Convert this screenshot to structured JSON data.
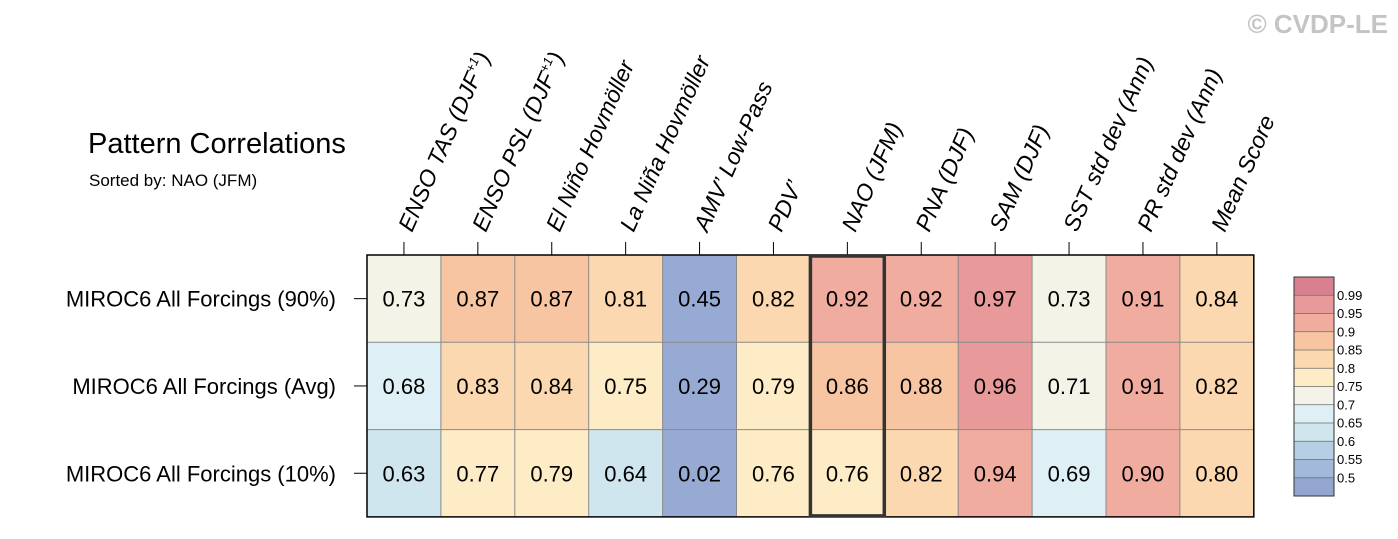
{
  "watermark": "© CVDP-LE",
  "chart_data": {
    "type": "heatmap",
    "title": "Pattern Correlations",
    "subtitle": "Sorted by: NAO (JFM)",
    "columns": [
      {
        "base": "ENSO TAS (DJF",
        "sup": "+1",
        "close": ")"
      },
      {
        "base": "ENSO PSL (DJF",
        "sup": "+1",
        "close": ")"
      },
      {
        "base": "El Niño Hovmöller",
        "sup": "",
        "close": ""
      },
      {
        "base": "La Niña Hovmöller",
        "sup": "",
        "close": ""
      },
      {
        "base": "AMV’ Low-Pass",
        "sup": "",
        "close": ""
      },
      {
        "base": "PDV’",
        "sup": "",
        "close": ""
      },
      {
        "base": "NAO (JFM)",
        "sup": "",
        "close": ""
      },
      {
        "base": "PNA (DJF)",
        "sup": "",
        "close": ""
      },
      {
        "base": "SAM (DJF)",
        "sup": "",
        "close": ""
      },
      {
        "base": "SST std dev (Ann)",
        "sup": "",
        "close": ""
      },
      {
        "base": "PR std dev (Ann)",
        "sup": "",
        "close": ""
      },
      {
        "base": "Mean Score",
        "sup": "",
        "close": ""
      }
    ],
    "rows": [
      {
        "label": "MIROC6 All Forcings (90%)",
        "values": [
          "0.73",
          "0.87",
          "0.87",
          "0.81",
          "0.45",
          "0.82",
          "0.92",
          "0.92",
          "0.97",
          "0.73",
          "0.91",
          "0.84"
        ]
      },
      {
        "label": "MIROC6 All Forcings (Avg)",
        "values": [
          "0.68",
          "0.83",
          "0.84",
          "0.75",
          "0.29",
          "0.79",
          "0.86",
          "0.88",
          "0.96",
          "0.71",
          "0.91",
          "0.82"
        ]
      },
      {
        "label": "MIROC6 All Forcings (10%)",
        "values": [
          "0.63",
          "0.77",
          "0.79",
          "0.64",
          "0.02",
          "0.76",
          "0.76",
          "0.82",
          "0.94",
          "0.69",
          "0.90",
          "0.80"
        ]
      }
    ],
    "highlight_column": "NAO (JFM)",
    "colorbar": {
      "levels": [
        "0.99",
        "0.95",
        "0.9",
        "0.85",
        "0.8",
        "0.75",
        "0.7",
        "0.65",
        "0.6",
        "0.55",
        "0.5"
      ],
      "colors": [
        "#d98090",
        "#e89a9a",
        "#f1aca0",
        "#f8c5a3",
        "#fbd8b0",
        "#fdecc5",
        "#f4f3e8",
        "#def0f5",
        "#cfe6ef",
        "#b6cfe5",
        "#a3b9db",
        "#94a6d0"
      ]
    },
    "value_scale": {
      "thresholds": [
        0.5,
        0.55,
        0.6,
        0.65,
        0.7,
        0.75,
        0.8,
        0.85,
        0.9,
        0.95,
        0.99
      ],
      "colors": [
        "#97aad3",
        "#a3b9db",
        "#b6cfe5",
        "#cfe6ef",
        "#def0f5",
        "#f4f3e8",
        "#fdecc5",
        "#fbd8b0",
        "#f8c5a3",
        "#f1aca0",
        "#e89a9a",
        "#d98090"
      ]
    }
  }
}
